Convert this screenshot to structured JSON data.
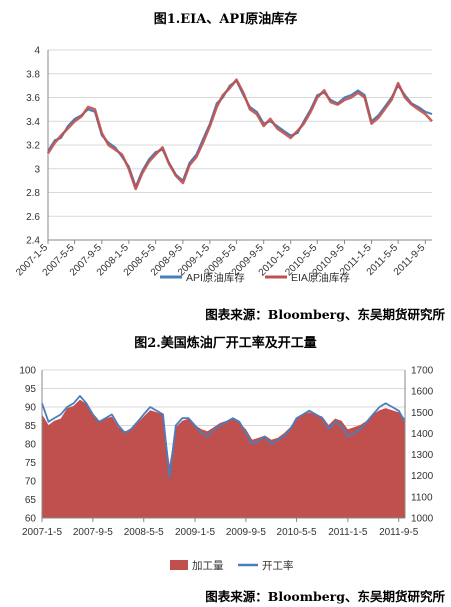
{
  "figure1": {
    "title": "图1.EIA、API原油库存",
    "source": "图表来源：Bloomberg、东吴期货研究所"
  },
  "figure2": {
    "title": "图2.美国炼油厂开工率及开工量",
    "source": "图表来源：Bloomberg、东吴期货研究所"
  },
  "chart_data": [
    {
      "type": "line",
      "title": "图1.EIA、API原油库存",
      "ylim": [
        2.4,
        4.0
      ],
      "yticks": [
        "2.4",
        "2.6",
        "2.8",
        "3",
        "3.2",
        "3.4",
        "3.6",
        "3.8",
        "4"
      ],
      "xticks": [
        "2007-1-5",
        "2007-5-5",
        "2007-9-5",
        "2008-1-5",
        "2008-5-5",
        "2008-9-5",
        "2009-1-5",
        "2009-5-5",
        "2009-9-5",
        "2010-1-5",
        "2010-5-5",
        "2010-9-5",
        "2011-1-5",
        "2011-5-5",
        "2011-9-5"
      ],
      "grid": true,
      "legend": "bottom",
      "x": [
        "2007-01-05",
        "2007-02-05",
        "2007-03-05",
        "2007-04-05",
        "2007-05-05",
        "2007-06-05",
        "2007-07-05",
        "2007-08-05",
        "2007-09-05",
        "2007-10-05",
        "2007-11-05",
        "2007-12-05",
        "2008-01-05",
        "2008-02-05",
        "2008-03-05",
        "2008-04-05",
        "2008-05-05",
        "2008-06-05",
        "2008-07-05",
        "2008-08-05",
        "2008-09-05",
        "2008-10-05",
        "2008-11-05",
        "2008-12-05",
        "2009-01-05",
        "2009-02-05",
        "2009-03-05",
        "2009-04-05",
        "2009-05-05",
        "2009-06-05",
        "2009-07-05",
        "2009-08-05",
        "2009-09-05",
        "2009-10-05",
        "2009-11-05",
        "2009-12-05",
        "2010-01-05",
        "2010-02-05",
        "2010-03-05",
        "2010-04-05",
        "2010-05-05",
        "2010-06-05",
        "2010-07-05",
        "2010-08-05",
        "2010-09-05",
        "2010-10-05",
        "2010-11-05",
        "2010-12-05",
        "2011-01-05",
        "2011-02-05",
        "2011-03-05",
        "2011-04-05",
        "2011-05-05",
        "2011-06-05",
        "2011-07-05",
        "2011-08-05",
        "2011-09-05",
        "2011-10-05"
      ],
      "series": [
        {
          "name": "API原油库存",
          "color": "#4a7ebb",
          "values": [
            3.15,
            3.24,
            3.26,
            3.36,
            3.42,
            3.45,
            3.5,
            3.48,
            3.28,
            3.22,
            3.18,
            3.1,
            3.02,
            2.85,
            2.98,
            3.08,
            3.14,
            3.16,
            3.05,
            2.95,
            2.9,
            3.05,
            3.12,
            3.25,
            3.38,
            3.55,
            3.6,
            3.7,
            3.74,
            3.62,
            3.52,
            3.48,
            3.38,
            3.4,
            3.36,
            3.32,
            3.28,
            3.3,
            3.4,
            3.5,
            3.62,
            3.64,
            3.58,
            3.55,
            3.6,
            3.62,
            3.66,
            3.62,
            3.4,
            3.45,
            3.52,
            3.6,
            3.7,
            3.62,
            3.55,
            3.52,
            3.48,
            3.46
          ]
        },
        {
          "name": "EIA原油库存",
          "color": "#c0504d",
          "values": [
            3.13,
            3.22,
            3.28,
            3.34,
            3.4,
            3.44,
            3.52,
            3.5,
            3.3,
            3.2,
            3.16,
            3.12,
            3.0,
            2.83,
            2.96,
            3.06,
            3.12,
            3.18,
            3.04,
            2.94,
            2.88,
            3.03,
            3.1,
            3.22,
            3.36,
            3.52,
            3.62,
            3.68,
            3.75,
            3.64,
            3.5,
            3.46,
            3.36,
            3.42,
            3.34,
            3.3,
            3.26,
            3.32,
            3.38,
            3.48,
            3.6,
            3.66,
            3.56,
            3.54,
            3.58,
            3.6,
            3.64,
            3.6,
            3.38,
            3.43,
            3.5,
            3.58,
            3.72,
            3.6,
            3.54,
            3.5,
            3.46,
            3.4
          ]
        }
      ]
    },
    {
      "type": "area",
      "title": "图2.美国炼油厂开工率及开工量",
      "ylim_left": [
        60,
        100
      ],
      "ylim_right": [
        1000,
        1700
      ],
      "yticks_left": [
        "60",
        "65",
        "70",
        "75",
        "80",
        "85",
        "90",
        "95",
        "100"
      ],
      "yticks_right": [
        "1000",
        "1100",
        "1200",
        "1300",
        "1400",
        "1500",
        "1600",
        "1700"
      ],
      "xticks": [
        "2007-1-5",
        "2007-9-5",
        "2008-5-5",
        "2009-1-5",
        "2009-9-5",
        "2010-5-5",
        "2011-1-5",
        "2011-9-5"
      ],
      "grid": true,
      "legend": "bottom",
      "x": [
        "2007-01-05",
        "2007-02-05",
        "2007-03-05",
        "2007-04-05",
        "2007-05-05",
        "2007-06-05",
        "2007-07-05",
        "2007-08-05",
        "2007-09-05",
        "2007-10-05",
        "2007-11-05",
        "2007-12-05",
        "2008-01-05",
        "2008-02-05",
        "2008-03-05",
        "2008-04-05",
        "2008-05-05",
        "2008-06-05",
        "2008-07-05",
        "2008-08-05",
        "2008-09-05",
        "2008-10-05",
        "2008-11-05",
        "2008-12-05",
        "2009-01-05",
        "2009-02-05",
        "2009-03-05",
        "2009-04-05",
        "2009-05-05",
        "2009-06-05",
        "2009-07-05",
        "2009-08-05",
        "2009-09-05",
        "2009-10-05",
        "2009-11-05",
        "2009-12-05",
        "2010-01-05",
        "2010-02-05",
        "2010-03-05",
        "2010-04-05",
        "2010-05-05",
        "2010-06-05",
        "2010-07-05",
        "2010-08-05",
        "2010-09-05",
        "2010-10-05",
        "2010-11-05",
        "2010-12-05",
        "2011-01-05",
        "2011-02-05",
        "2011-03-05",
        "2011-04-05",
        "2011-05-05",
        "2011-06-05",
        "2011-07-05",
        "2011-08-05",
        "2011-09-05",
        "2011-10-05"
      ],
      "series": [
        {
          "name": "加工量",
          "axis": "right",
          "color": "#c0504d",
          "values": [
            1490,
            1440,
            1460,
            1470,
            1520,
            1530,
            1560,
            1540,
            1490,
            1460,
            1470,
            1480,
            1430,
            1410,
            1420,
            1450,
            1480,
            1510,
            1500,
            1490,
            1250,
            1430,
            1460,
            1470,
            1440,
            1420,
            1410,
            1430,
            1450,
            1460,
            1470,
            1450,
            1420,
            1370,
            1380,
            1390,
            1370,
            1380,
            1400,
            1430,
            1470,
            1490,
            1500,
            1490,
            1480,
            1440,
            1470,
            1460,
            1420,
            1430,
            1440,
            1460,
            1490,
            1510,
            1520,
            1510,
            1500,
            1470
          ]
        },
        {
          "name": "开工率",
          "axis": "left",
          "color": "#4a7ebb",
          "values": [
            91,
            86,
            87,
            88,
            90,
            91,
            93,
            91,
            88,
            86,
            87,
            88,
            85,
            83,
            84,
            86,
            88,
            90,
            89,
            88,
            71,
            85,
            87,
            87,
            85,
            83,
            82,
            84,
            85,
            86,
            87,
            86,
            83,
            80,
            81,
            82,
            80,
            81,
            82,
            84,
            87,
            88,
            89,
            88,
            87,
            84,
            86,
            85,
            82,
            83,
            84,
            86,
            88,
            90,
            91,
            90,
            89,
            86
          ]
        }
      ]
    }
  ]
}
